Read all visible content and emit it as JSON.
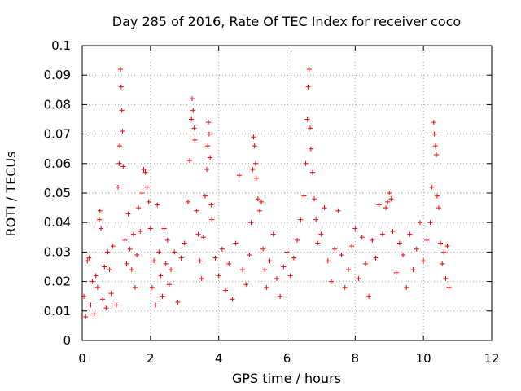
{
  "chart_data": {
    "type": "scatter",
    "title": "Day 285 of 2016, Rate Of TEC Index for receiver coco",
    "xlabel": "GPS time / hours",
    "ylabel": "ROTI / TECUs",
    "xlim": [
      0,
      12
    ],
    "ylim": [
      0,
      0.1
    ],
    "xticks": [
      0,
      2,
      4,
      6,
      8,
      10,
      12
    ],
    "xtick_labels": [
      "0",
      "2",
      "4",
      "6",
      "8",
      "10",
      "12"
    ],
    "yticks": [
      0,
      0.01,
      0.02,
      0.03,
      0.04,
      0.05,
      0.06,
      0.07,
      0.08,
      0.09,
      0.1
    ],
    "ytick_labels": [
      "0",
      "0.01",
      "0.02",
      "0.03",
      "0.04",
      "0.05",
      "0.06",
      "0.07",
      "0.08",
      "0.09",
      "0.1"
    ],
    "grid": true,
    "marker": "+",
    "color": "#ff0000",
    "series": [
      {
        "name": "ROTI",
        "points": [
          [
            0.05,
            0.015
          ],
          [
            0.1,
            0.008
          ],
          [
            0.15,
            0.027
          ],
          [
            0.2,
            0.028
          ],
          [
            0.25,
            0.012
          ],
          [
            0.3,
            0.02
          ],
          [
            0.35,
            0.009
          ],
          [
            0.4,
            0.022
          ],
          [
            0.45,
            0.018
          ],
          [
            0.5,
            0.041
          ],
          [
            0.52,
            0.044
          ],
          [
            0.55,
            0.038
          ],
          [
            0.6,
            0.014
          ],
          [
            0.65,
            0.025
          ],
          [
            0.7,
            0.011
          ],
          [
            0.75,
            0.03
          ],
          [
            0.8,
            0.024
          ],
          [
            0.85,
            0.016
          ],
          [
            0.9,
            0.032
          ],
          [
            1.0,
            0.012
          ],
          [
            1.05,
            0.052
          ],
          [
            1.08,
            0.06
          ],
          [
            1.1,
            0.066
          ],
          [
            1.12,
            0.092
          ],
          [
            1.14,
            0.086
          ],
          [
            1.16,
            0.078
          ],
          [
            1.18,
            0.071
          ],
          [
            1.2,
            0.059
          ],
          [
            1.25,
            0.034
          ],
          [
            1.3,
            0.026
          ],
          [
            1.35,
            0.043
          ],
          [
            1.4,
            0.031
          ],
          [
            1.45,
            0.024
          ],
          [
            1.5,
            0.036
          ],
          [
            1.55,
            0.018
          ],
          [
            1.6,
            0.029
          ],
          [
            1.65,
            0.045
          ],
          [
            1.7,
            0.037
          ],
          [
            1.75,
            0.05
          ],
          [
            1.8,
            0.058
          ],
          [
            1.85,
            0.057
          ],
          [
            1.9,
            0.052
          ],
          [
            1.95,
            0.047
          ],
          [
            2.0,
            0.038
          ],
          [
            2.05,
            0.018
          ],
          [
            2.1,
            0.027
          ],
          [
            2.15,
            0.012
          ],
          [
            2.2,
            0.046
          ],
          [
            2.25,
            0.03
          ],
          [
            2.3,
            0.022
          ],
          [
            2.35,
            0.015
          ],
          [
            2.4,
            0.038
          ],
          [
            2.45,
            0.026
          ],
          [
            2.5,
            0.034
          ],
          [
            2.55,
            0.019
          ],
          [
            2.6,
            0.024
          ],
          [
            2.7,
            0.03
          ],
          [
            2.8,
            0.013
          ],
          [
            2.9,
            0.028
          ],
          [
            3.0,
            0.033
          ],
          [
            3.1,
            0.047
          ],
          [
            3.15,
            0.061
          ],
          [
            3.2,
            0.075
          ],
          [
            3.22,
            0.082
          ],
          [
            3.25,
            0.078
          ],
          [
            3.28,
            0.072
          ],
          [
            3.3,
            0.068
          ],
          [
            3.35,
            0.044
          ],
          [
            3.4,
            0.036
          ],
          [
            3.45,
            0.027
          ],
          [
            3.5,
            0.021
          ],
          [
            3.55,
            0.035
          ],
          [
            3.6,
            0.049
          ],
          [
            3.65,
            0.058
          ],
          [
            3.68,
            0.066
          ],
          [
            3.7,
            0.074
          ],
          [
            3.72,
            0.07
          ],
          [
            3.75,
            0.062
          ],
          [
            3.78,
            0.046
          ],
          [
            3.8,
            0.041
          ],
          [
            3.9,
            0.028
          ],
          [
            4.0,
            0.022
          ],
          [
            4.1,
            0.031
          ],
          [
            4.2,
            0.017
          ],
          [
            4.3,
            0.026
          ],
          [
            4.4,
            0.014
          ],
          [
            4.5,
            0.033
          ],
          [
            4.6,
            0.056
          ],
          [
            4.7,
            0.024
          ],
          [
            4.8,
            0.019
          ],
          [
            4.9,
            0.029
          ],
          [
            4.95,
            0.04
          ],
          [
            5.0,
            0.058
          ],
          [
            5.02,
            0.069
          ],
          [
            5.05,
            0.066
          ],
          [
            5.08,
            0.06
          ],
          [
            5.1,
            0.055
          ],
          [
            5.15,
            0.048
          ],
          [
            5.2,
            0.044
          ],
          [
            5.25,
            0.047
          ],
          [
            5.3,
            0.031
          ],
          [
            5.35,
            0.024
          ],
          [
            5.4,
            0.018
          ],
          [
            5.5,
            0.027
          ],
          [
            5.6,
            0.036
          ],
          [
            5.7,
            0.021
          ],
          [
            5.8,
            0.015
          ],
          [
            5.9,
            0.025
          ],
          [
            6.0,
            0.03
          ],
          [
            6.1,
            0.022
          ],
          [
            6.2,
            0.028
          ],
          [
            6.3,
            0.034
          ],
          [
            6.4,
            0.041
          ],
          [
            6.5,
            0.049
          ],
          [
            6.55,
            0.06
          ],
          [
            6.6,
            0.075
          ],
          [
            6.62,
            0.086
          ],
          [
            6.65,
            0.092
          ],
          [
            6.68,
            0.072
          ],
          [
            6.7,
            0.065
          ],
          [
            6.75,
            0.057
          ],
          [
            6.8,
            0.048
          ],
          [
            6.85,
            0.041
          ],
          [
            6.9,
            0.033
          ],
          [
            7.0,
            0.036
          ],
          [
            7.1,
            0.045
          ],
          [
            7.2,
            0.027
          ],
          [
            7.3,
            0.02
          ],
          [
            7.4,
            0.031
          ],
          [
            7.5,
            0.044
          ],
          [
            7.6,
            0.029
          ],
          [
            7.7,
            0.018
          ],
          [
            7.8,
            0.024
          ],
          [
            7.9,
            0.032
          ],
          [
            8.0,
            0.038
          ],
          [
            8.1,
            0.021
          ],
          [
            8.2,
            0.035
          ],
          [
            8.3,
            0.026
          ],
          [
            8.4,
            0.015
          ],
          [
            8.5,
            0.034
          ],
          [
            8.6,
            0.028
          ],
          [
            8.7,
            0.046
          ],
          [
            8.8,
            0.036
          ],
          [
            8.9,
            0.045
          ],
          [
            8.95,
            0.047
          ],
          [
            9.0,
            0.05
          ],
          [
            9.05,
            0.048
          ],
          [
            9.1,
            0.037
          ],
          [
            9.2,
            0.023
          ],
          [
            9.3,
            0.033
          ],
          [
            9.4,
            0.029
          ],
          [
            9.5,
            0.018
          ],
          [
            9.6,
            0.036
          ],
          [
            9.7,
            0.024
          ],
          [
            9.8,
            0.031
          ],
          [
            9.9,
            0.04
          ],
          [
            10.0,
            0.027
          ],
          [
            10.1,
            0.034
          ],
          [
            10.2,
            0.04
          ],
          [
            10.25,
            0.052
          ],
          [
            10.3,
            0.074
          ],
          [
            10.32,
            0.07
          ],
          [
            10.35,
            0.066
          ],
          [
            10.38,
            0.063
          ],
          [
            10.4,
            0.049
          ],
          [
            10.45,
            0.045
          ],
          [
            10.5,
            0.033
          ],
          [
            10.55,
            0.026
          ],
          [
            10.6,
            0.03
          ],
          [
            10.65,
            0.021
          ],
          [
            10.7,
            0.032
          ],
          [
            10.75,
            0.018
          ]
        ]
      }
    ]
  }
}
